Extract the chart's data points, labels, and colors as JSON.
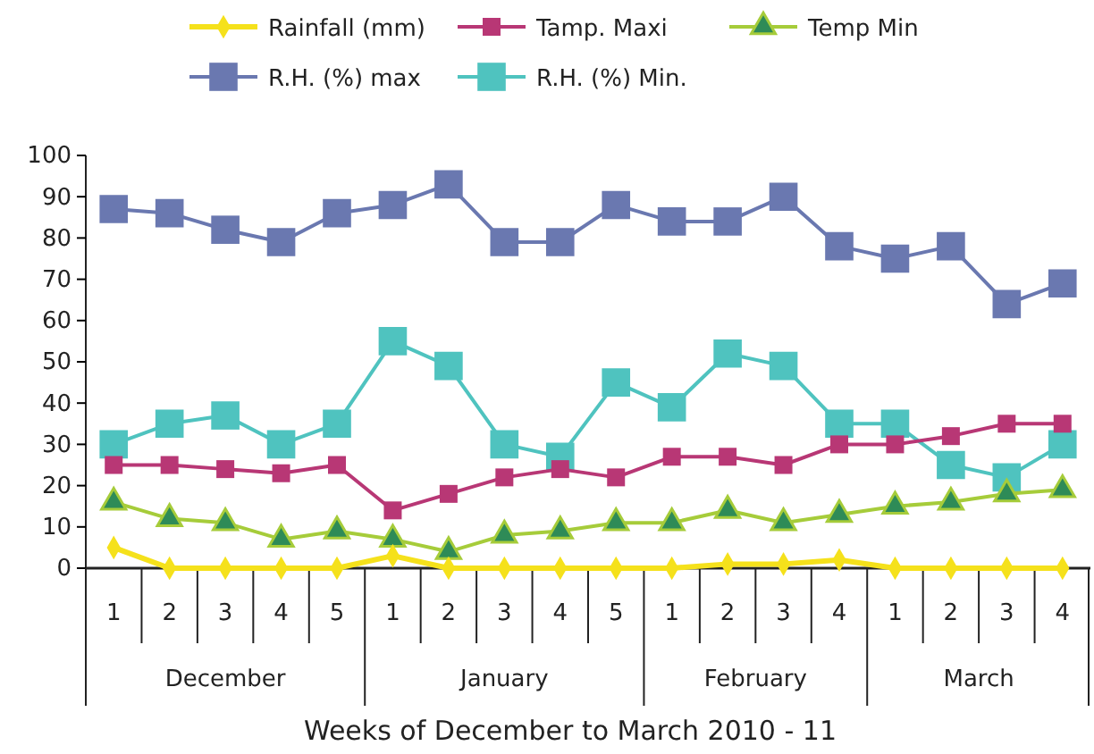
{
  "chart_data": {
    "type": "line",
    "xlabel": "Weeks of December to March 2010 - 11",
    "categories": [
      "1",
      "2",
      "3",
      "4",
      "5",
      "1",
      "2",
      "3",
      "4",
      "5",
      "1",
      "2",
      "3",
      "4",
      "1",
      "2",
      "3",
      "4"
    ],
    "annotations": [
      "December",
      "January",
      "February",
      "March"
    ],
    "ylim": [
      0,
      100
    ],
    "yticks": [
      0,
      10,
      20,
      30,
      40,
      50,
      60,
      70,
      80,
      90,
      100
    ],
    "grid": false,
    "legend": "top",
    "series": [
      {
        "name": "Rainfall (mm)",
        "color": "#f5e11b",
        "marker": "diamond",
        "values": [
          5,
          0,
          0,
          0,
          0,
          3,
          0,
          0,
          0,
          0,
          0,
          1,
          1,
          2,
          0,
          0,
          0,
          0
        ]
      },
      {
        "name": "Tamp. Maxi",
        "color": "#b83775",
        "marker": "square",
        "values": [
          25,
          25,
          24,
          23,
          25,
          14,
          18,
          22,
          24,
          22,
          27,
          27,
          25,
          30,
          30,
          32,
          35,
          35
        ]
      },
      {
        "name": "Temp Min",
        "color": "#a6cc3a",
        "marker": "triangle",
        "values": [
          16,
          12,
          11,
          7,
          9,
          7,
          4,
          8,
          9,
          11,
          11,
          14,
          11,
          13,
          15,
          16,
          18,
          19
        ]
      },
      {
        "name": "R.H. (%) max",
        "color": "#6a78b0",
        "marker": "square",
        "values": [
          87,
          86,
          82,
          79,
          86,
          88,
          93,
          79,
          79,
          88,
          84,
          84,
          90,
          78,
          75,
          78,
          64,
          69
        ]
      },
      {
        "name": "R.H. (%) Min.",
        "color": "#4fc3bf",
        "marker": "square",
        "values": [
          30,
          35,
          37,
          30,
          35,
          55,
          49,
          30,
          27,
          45,
          39,
          52,
          49,
          35,
          35,
          25,
          22,
          30
        ]
      }
    ]
  }
}
